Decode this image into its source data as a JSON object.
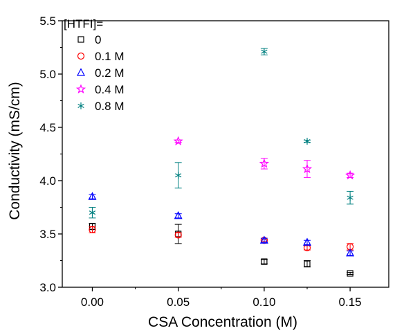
{
  "chart_data": {
    "type": "scatter",
    "title": "",
    "xlabel": "CSA Concentration (M)",
    "ylabel": "Conductivity (mS/cm)",
    "xlim": [
      -0.0175,
      0.1725
    ],
    "ylim": [
      3.0,
      5.5
    ],
    "xticks": [
      0.0,
      0.05,
      0.1,
      0.15
    ],
    "xtick_labels": [
      "0.00",
      "0.05",
      "0.10",
      "0.15"
    ],
    "yticks": [
      3.0,
      3.5,
      4.0,
      4.5,
      5.0,
      5.5
    ],
    "ytick_labels": [
      "3.0",
      "3.5",
      "4.0",
      "4.5",
      "5.0",
      "5.5"
    ],
    "grid": false,
    "legend": {
      "title": "[HTFI]=",
      "placement": "top-left"
    },
    "series": [
      {
        "name": "0",
        "marker": "square",
        "color": "#000000",
        "points": [
          {
            "x": 0.0,
            "y": 3.57,
            "err": 0.03
          },
          {
            "x": 0.05,
            "y": 3.5,
            "err": 0.09
          },
          {
            "x": 0.1,
            "y": 3.24,
            "err": 0.02
          },
          {
            "x": 0.125,
            "y": 3.22,
            "err": 0.03
          },
          {
            "x": 0.15,
            "y": 3.13,
            "err": 0.01
          }
        ]
      },
      {
        "name": "0.1 M",
        "marker": "circle",
        "color": "#ff0000",
        "points": [
          {
            "x": 0.0,
            "y": 3.54,
            "err": 0.03
          },
          {
            "x": 0.05,
            "y": 3.49,
            "err": 0.02
          },
          {
            "x": 0.1,
            "y": 3.44,
            "err": 0.01
          },
          {
            "x": 0.125,
            "y": 3.37,
            "err": 0.02
          },
          {
            "x": 0.15,
            "y": 3.38,
            "err": 0.03
          }
        ]
      },
      {
        "name": "0.2 M",
        "marker": "triangle",
        "color": "#0000ff",
        "points": [
          {
            "x": 0.0,
            "y": 3.85,
            "err": 0.02
          },
          {
            "x": 0.05,
            "y": 3.67,
            "err": 0.02
          },
          {
            "x": 0.1,
            "y": 3.44,
            "err": 0.02
          },
          {
            "x": 0.125,
            "y": 3.42,
            "err": 0.02
          },
          {
            "x": 0.15,
            "y": 3.32,
            "err": 0.02
          }
        ]
      },
      {
        "name": "0.4 M",
        "marker": "star",
        "color": "#ff00ff",
        "points": [
          {
            "x": 0.05,
            "y": 4.37,
            "err": 0.01
          },
          {
            "x": 0.1,
            "y": 4.16,
            "err": 0.05
          },
          {
            "x": 0.125,
            "y": 4.11,
            "err": 0.08
          },
          {
            "x": 0.15,
            "y": 4.05,
            "err": 0.02
          }
        ]
      },
      {
        "name": "0.8 M",
        "marker": "asterisk",
        "color": "#008080",
        "points": [
          {
            "x": 0.0,
            "y": 3.7,
            "err": 0.05
          },
          {
            "x": 0.05,
            "y": 4.05,
            "err": 0.12
          },
          {
            "x": 0.1,
            "y": 5.21,
            "err": 0.03
          },
          {
            "x": 0.125,
            "y": 4.37,
            "err": 0.01
          },
          {
            "x": 0.15,
            "y": 3.84,
            "err": 0.06
          }
        ]
      }
    ]
  }
}
